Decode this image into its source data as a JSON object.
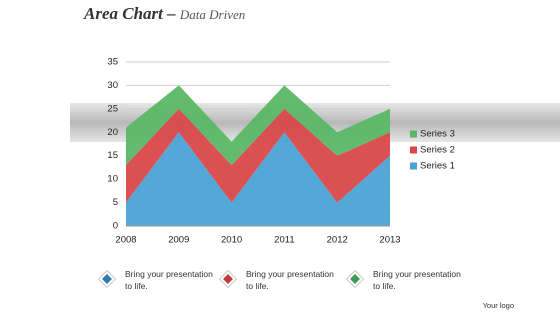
{
  "header": {
    "title": "Area Chart",
    "subtitle": "Data Driven"
  },
  "chart_data": {
    "type": "area",
    "stacked": true,
    "categories": [
      "2008",
      "2009",
      "2010",
      "2011",
      "2012",
      "2013"
    ],
    "series": [
      {
        "name": "Series 1",
        "color": "#4aa3d6",
        "values": [
          5,
          20,
          5,
          20,
          5,
          15
        ]
      },
      {
        "name": "Series 2",
        "color": "#d9484a",
        "values": [
          8,
          5,
          8,
          5,
          10,
          5
        ]
      },
      {
        "name": "Series 3",
        "color": "#5bb765",
        "values": [
          8,
          5,
          5,
          5,
          5,
          5
        ]
      }
    ],
    "ylim": [
      0,
      35
    ],
    "yticks": [
      0,
      5,
      10,
      15,
      20,
      25,
      30,
      35
    ],
    "grid": true,
    "legend": "right"
  },
  "items": [
    {
      "text": "Bring your presentation to life.",
      "color": "#2f7ab3"
    },
    {
      "text": "Bring your presentation to life.",
      "color": "#c23a3a"
    },
    {
      "text": "Bring your presentation to life.",
      "color": "#3f9a52"
    }
  ],
  "footer": "Your logo"
}
